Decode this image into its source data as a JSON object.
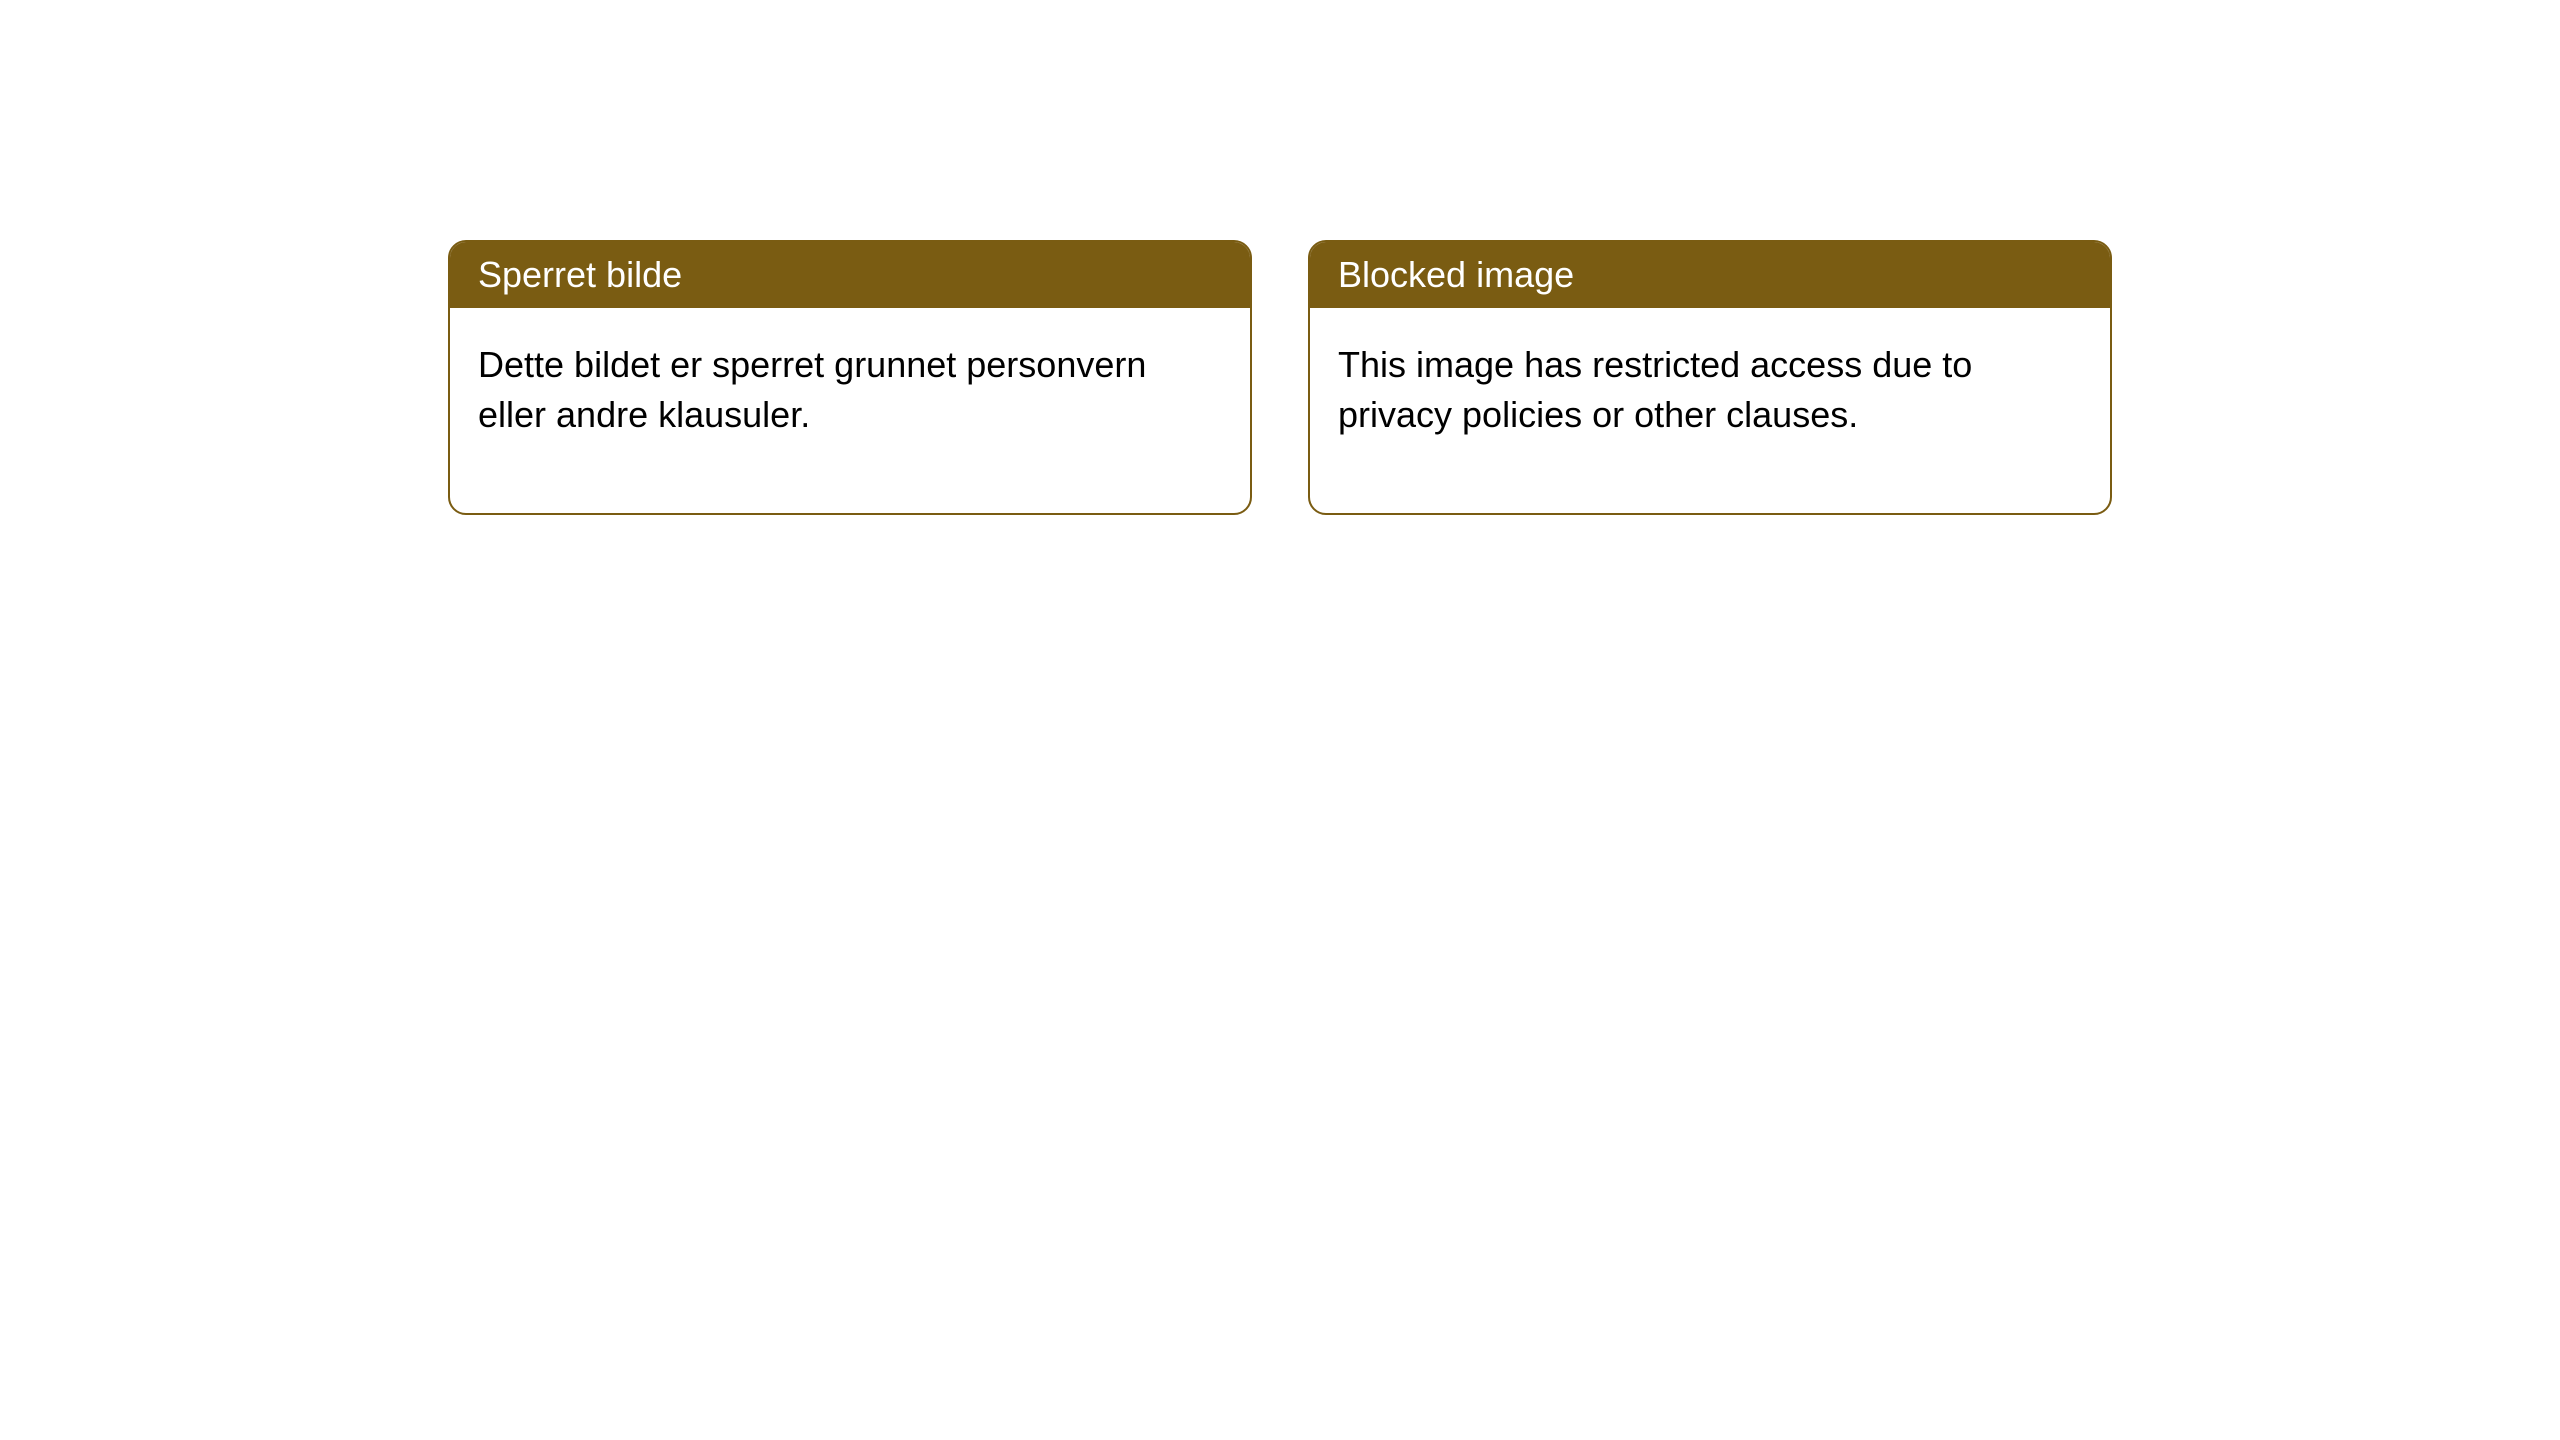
{
  "cards": [
    {
      "header": "Sperret bilde",
      "body": "Dette bildet er sperret grunnet personvern eller andre klausuler."
    },
    {
      "header": "Blocked image",
      "body": "This image has restricted access due to privacy policies or other clauses."
    }
  ],
  "styling": {
    "header_bg_color": "#7a5c12",
    "header_text_color": "#ffffff",
    "border_color": "#7a5c12",
    "body_bg_color": "#ffffff",
    "body_text_color": "#000000",
    "border_radius": 18,
    "header_fontsize": 36,
    "body_fontsize": 36,
    "card_gap": 56
  }
}
